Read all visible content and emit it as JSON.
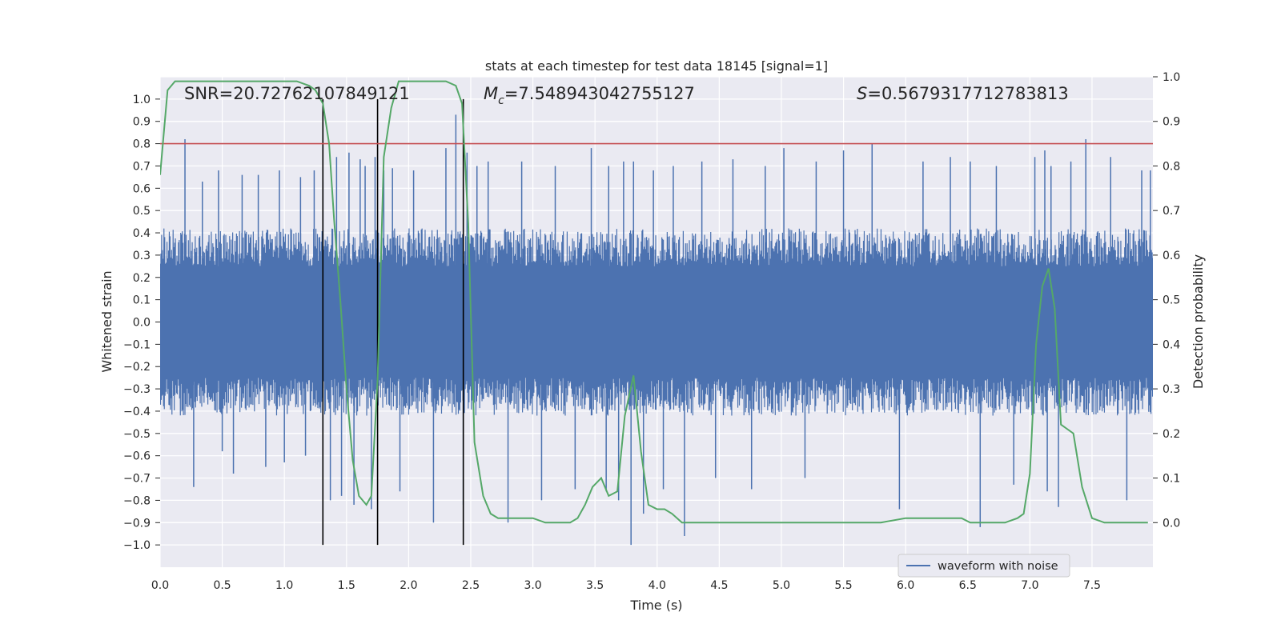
{
  "chart_data": {
    "type": "line",
    "title": "stats at each timestep for test data 18145 [signal=1]",
    "xlabel": "Time (s)",
    "ylabel_left": "Whitened strain",
    "ylabel_right": "Detection probability",
    "xlim": [
      0,
      7.99
    ],
    "ylim_left": [
      -1.1,
      1.1
    ],
    "ylim_right": [
      -0.1,
      1.0
    ],
    "x_ticks": [
      "0.0",
      "0.5",
      "1.0",
      "1.5",
      "2.0",
      "2.5",
      "3.0",
      "3.5",
      "4.0",
      "4.5",
      "5.0",
      "5.5",
      "6.0",
      "6.5",
      "7.0",
      "7.5"
    ],
    "y_ticks_left": [
      "1.0",
      "0.9",
      "0.8",
      "0.7",
      "0.6",
      "0.5",
      "0.4",
      "0.3",
      "0.2",
      "0.1",
      "0.0",
      "−0.1",
      "−0.2",
      "−0.3",
      "−0.4",
      "−0.5",
      "−0.6",
      "−0.7",
      "−0.8",
      "−0.9",
      "−1.0"
    ],
    "y_ticks_right": [
      "1.0",
      "0.9",
      "0.8",
      "0.7",
      "0.6",
      "0.5",
      "0.4",
      "0.3",
      "0.2",
      "0.1",
      "0.0"
    ],
    "grid": true,
    "legend_position": "lower-right",
    "annotations": {
      "snr": "SNR=20.72762107849121",
      "mc_symbol": "M",
      "mc_subscript": "c",
      "mc_value": "=7.548943042755127",
      "s_symbol": "S",
      "s_value": "=0.5679317712783813"
    },
    "threshold": {
      "value": 0.8,
      "axis": "left",
      "color": "#c44e52"
    },
    "vertical_lines": [
      1.31,
      1.75,
      2.44
    ],
    "series": [
      {
        "name": "waveform with noise",
        "axis": "left",
        "color": "#4c72b0",
        "spikes": [
          [
            0.2,
            0.82
          ],
          [
            0.27,
            -0.74
          ],
          [
            0.34,
            0.63
          ],
          [
            0.47,
            0.68
          ],
          [
            0.5,
            -0.58
          ],
          [
            0.59,
            -0.68
          ],
          [
            0.66,
            0.66
          ],
          [
            0.79,
            0.66
          ],
          [
            0.85,
            -0.65
          ],
          [
            0.96,
            0.68
          ],
          [
            1.0,
            -0.63
          ],
          [
            1.13,
            0.65
          ],
          [
            1.17,
            -0.6
          ],
          [
            1.24,
            0.68
          ],
          [
            1.31,
            0.63
          ],
          [
            1.37,
            -0.8
          ],
          [
            1.42,
            0.74
          ],
          [
            1.46,
            -0.78
          ],
          [
            1.52,
            0.76
          ],
          [
            1.56,
            -0.82
          ],
          [
            1.61,
            0.73
          ],
          [
            1.65,
            0.7
          ],
          [
            1.7,
            -0.84
          ],
          [
            1.73,
            0.74
          ],
          [
            1.8,
            0.68
          ],
          [
            1.87,
            0.69
          ],
          [
            1.93,
            -0.76
          ],
          [
            2.04,
            0.68
          ],
          [
            2.2,
            -0.9
          ],
          [
            2.3,
            0.78
          ],
          [
            2.38,
            0.93
          ],
          [
            2.44,
            -0.82
          ],
          [
            2.47,
            0.76
          ],
          [
            2.55,
            0.7
          ],
          [
            2.64,
            0.72
          ],
          [
            2.8,
            -0.9
          ],
          [
            2.91,
            0.72
          ],
          [
            3.07,
            -0.8
          ],
          [
            3.18,
            0.7
          ],
          [
            3.34,
            -0.75
          ],
          [
            3.47,
            0.78
          ],
          [
            3.59,
            -0.76
          ],
          [
            3.61,
            0.7
          ],
          [
            3.69,
            -0.8
          ],
          [
            3.73,
            0.72
          ],
          [
            3.79,
            -1.0
          ],
          [
            3.81,
            0.72
          ],
          [
            3.89,
            -0.86
          ],
          [
            3.97,
            0.68
          ],
          [
            4.05,
            -0.75
          ],
          [
            4.13,
            0.7
          ],
          [
            4.22,
            -0.96
          ],
          [
            4.36,
            0.72
          ],
          [
            4.47,
            -0.7
          ],
          [
            4.61,
            0.73
          ],
          [
            4.76,
            -0.75
          ],
          [
            4.87,
            0.7
          ],
          [
            5.02,
            0.78
          ],
          [
            5.19,
            -0.7
          ],
          [
            5.28,
            0.72
          ],
          [
            5.5,
            0.77
          ],
          [
            5.73,
            0.8
          ],
          [
            5.95,
            -0.84
          ],
          [
            6.14,
            0.72
          ],
          [
            6.36,
            0.74
          ],
          [
            6.52,
            0.72
          ],
          [
            6.6,
            -0.92
          ],
          [
            6.73,
            0.7
          ],
          [
            6.87,
            -0.73
          ],
          [
            7.04,
            0.74
          ],
          [
            7.12,
            0.77
          ],
          [
            7.14,
            -0.76
          ],
          [
            7.17,
            0.7
          ],
          [
            7.23,
            -0.83
          ],
          [
            7.33,
            0.72
          ],
          [
            7.45,
            0.82
          ],
          [
            7.65,
            0.74
          ],
          [
            7.78,
            -0.8
          ],
          [
            7.9,
            0.68
          ],
          [
            7.97,
            0.68
          ]
        ]
      },
      {
        "name": "Detection probability",
        "axis": "right",
        "color": "#55a868",
        "x": [
          0.0,
          0.06,
          0.12,
          0.3,
          0.5,
          0.7,
          0.9,
          1.0,
          1.1,
          1.2,
          1.25,
          1.31,
          1.36,
          1.4,
          1.45,
          1.5,
          1.55,
          1.6,
          1.66,
          1.7,
          1.75,
          1.8,
          1.86,
          1.92,
          2.0,
          2.1,
          2.2,
          2.3,
          2.38,
          2.43,
          2.48,
          2.53,
          2.6,
          2.66,
          2.72,
          2.8,
          2.86,
          2.92,
          3.0,
          3.1,
          3.2,
          3.3,
          3.36,
          3.42,
          3.48,
          3.55,
          3.61,
          3.68,
          3.74,
          3.81,
          3.87,
          3.93,
          4.0,
          4.06,
          4.12,
          4.2,
          4.3,
          4.4,
          4.6,
          4.8,
          5.0,
          5.2,
          5.4,
          5.6,
          5.8,
          6.0,
          6.1,
          6.2,
          6.3,
          6.4,
          6.45,
          6.52,
          6.6,
          6.7,
          6.8,
          6.9,
          6.95,
          7.0,
          7.05,
          7.1,
          7.15,
          7.2,
          7.25,
          7.3,
          7.35,
          7.42,
          7.5,
          7.6,
          7.8,
          7.95
        ],
        "y": [
          0.78,
          0.97,
          0.99,
          0.99,
          0.99,
          0.99,
          0.99,
          0.99,
          0.99,
          0.98,
          0.97,
          0.94,
          0.85,
          0.68,
          0.5,
          0.3,
          0.14,
          0.06,
          0.04,
          0.06,
          0.32,
          0.82,
          0.93,
          0.99,
          0.99,
          0.99,
          0.99,
          0.99,
          0.98,
          0.94,
          0.67,
          0.18,
          0.06,
          0.02,
          0.01,
          0.01,
          0.01,
          0.01,
          0.01,
          0.0,
          0.0,
          0.0,
          0.01,
          0.04,
          0.08,
          0.1,
          0.06,
          0.07,
          0.24,
          0.33,
          0.16,
          0.04,
          0.03,
          0.03,
          0.02,
          0.0,
          0.0,
          0.0,
          0.0,
          0.0,
          0.0,
          0.0,
          0.0,
          0.0,
          0.0,
          0.01,
          0.01,
          0.01,
          0.01,
          0.01,
          0.01,
          0.0,
          0.0,
          0.0,
          0.0,
          0.01,
          0.02,
          0.11,
          0.4,
          0.53,
          0.57,
          0.48,
          0.22,
          0.21,
          0.2,
          0.08,
          0.01,
          0.0,
          0.0,
          0.0
        ]
      }
    ]
  }
}
